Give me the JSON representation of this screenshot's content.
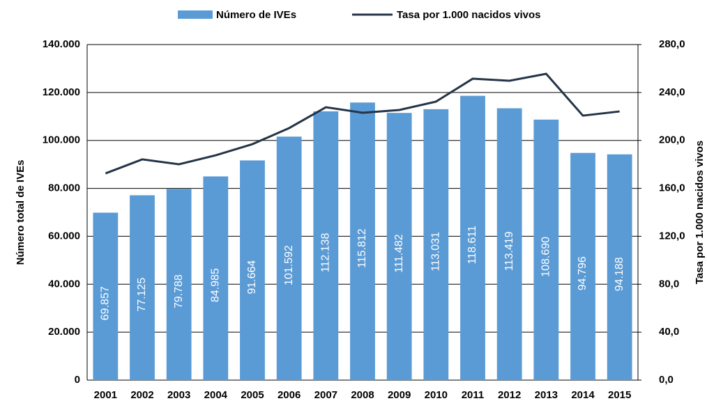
{
  "chart_data": {
    "type": "bar",
    "categories": [
      "2001",
      "2002",
      "2003",
      "2004",
      "2005",
      "2006",
      "2007",
      "2008",
      "2009",
      "2010",
      "2011",
      "2012",
      "2013",
      "2014",
      "2015"
    ],
    "series": [
      {
        "name": "Número de IVEs",
        "type": "bar",
        "color": "#5b9bd5",
        "values": [
          69857,
          77125,
          79788,
          84985,
          91664,
          101592,
          112138,
          115812,
          111482,
          113031,
          118611,
          113419,
          108690,
          94796,
          94188
        ],
        "value_labels": [
          "69.857",
          "77.125",
          "79.788",
          "84.985",
          "91.664",
          "101.592",
          "112.138",
          "115.812",
          "111.482",
          "113.031",
          "118.611",
          "113.419",
          "108.690",
          "94.796",
          "94.188"
        ]
      },
      {
        "name": "Tasa por 1.000 nacidos vivos",
        "type": "line",
        "color": "#243447",
        "axis": "y2",
        "values": [
          172.5,
          184.2,
          180.1,
          187.6,
          196.9,
          210.3,
          227.7,
          223.1,
          225.4,
          232.4,
          251.5,
          249.8,
          255.6,
          220.7,
          224.2
        ]
      }
    ],
    "y_label": "Número total de IVEs",
    "y2_label": "Tasa por 1.000 nacidos vivos",
    "ylim": [
      0,
      140000
    ],
    "yticks": [
      0,
      {
        "value": 20000,
        "label": "20.000"
      },
      {
        "value": 40000,
        "label": "40.000"
      },
      {
        "value": 60000,
        "label": "60.000"
      },
      {
        "value": 80000,
        "label": "80.000"
      },
      {
        "value": 100000,
        "label": "100.000"
      },
      {
        "value": 120000,
        "label": "120.000"
      },
      {
        "value": 140000,
        "label": "140.000"
      }
    ],
    "y2lim": [
      0,
      280
    ],
    "y2ticks": [
      {
        "value": 0,
        "label": "0,0"
      },
      {
        "value": 40,
        "label": "40,0"
      },
      {
        "value": 80,
        "label": "80,0"
      },
      {
        "value": 120,
        "label": "120,0"
      },
      {
        "value": 160,
        "label": "160,0"
      },
      {
        "value": 200,
        "label": "200,0"
      },
      {
        "value": 240,
        "label": "240,0"
      },
      {
        "value": 280,
        "label": "280,0"
      }
    ],
    "grid": true,
    "legend": "top"
  }
}
